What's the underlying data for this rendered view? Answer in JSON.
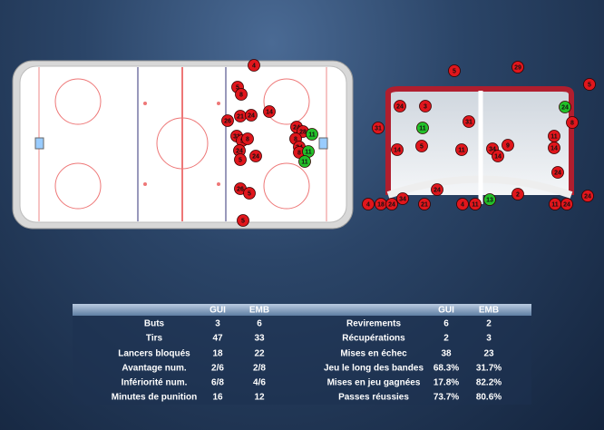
{
  "rink_shots": [
    {
      "label": "4",
      "color": "red"
    },
    {
      "label": "5",
      "color": "red"
    },
    {
      "label": "8",
      "color": "red"
    },
    {
      "label": "26",
      "color": "red"
    },
    {
      "label": "21",
      "color": "red"
    },
    {
      "label": "24",
      "color": "red"
    },
    {
      "label": "14",
      "color": "red"
    },
    {
      "label": "31",
      "color": "red"
    },
    {
      "label": "5",
      "color": "red"
    },
    {
      "label": "8",
      "color": "red"
    },
    {
      "label": "24",
      "color": "red"
    },
    {
      "label": "24",
      "color": "red"
    },
    {
      "label": "5",
      "color": "red"
    },
    {
      "label": "24",
      "color": "red"
    },
    {
      "label": "28",
      "color": "red"
    },
    {
      "label": "11",
      "color": "green"
    },
    {
      "label": "8",
      "color": "red"
    },
    {
      "label": "24",
      "color": "red"
    },
    {
      "label": "8",
      "color": "red"
    },
    {
      "label": "11",
      "color": "green"
    },
    {
      "label": "11",
      "color": "green"
    },
    {
      "label": "26",
      "color": "red"
    },
    {
      "label": "5",
      "color": "red"
    },
    {
      "label": "5",
      "color": "red"
    }
  ],
  "net_shots": [
    {
      "label": "5",
      "color": "red"
    },
    {
      "label": "29",
      "color": "red"
    },
    {
      "label": "5",
      "color": "red"
    },
    {
      "label": "24",
      "color": "red"
    },
    {
      "label": "3",
      "color": "red"
    },
    {
      "label": "11",
      "color": "green"
    },
    {
      "label": "31",
      "color": "red"
    },
    {
      "label": "24",
      "color": "green"
    },
    {
      "label": "8",
      "color": "red"
    },
    {
      "label": "31",
      "color": "red"
    },
    {
      "label": "11",
      "color": "red"
    },
    {
      "label": "14",
      "color": "red"
    },
    {
      "label": "5",
      "color": "red"
    },
    {
      "label": "11",
      "color": "red"
    },
    {
      "label": "34",
      "color": "red"
    },
    {
      "label": "9",
      "color": "red"
    },
    {
      "label": "14",
      "color": "red"
    },
    {
      "label": "14",
      "color": "red"
    },
    {
      "label": "24",
      "color": "red"
    },
    {
      "label": "24",
      "color": "red"
    },
    {
      "label": "2",
      "color": "red"
    },
    {
      "label": "24",
      "color": "red"
    },
    {
      "label": "4",
      "color": "red"
    },
    {
      "label": "18",
      "color": "red"
    },
    {
      "label": "24",
      "color": "red"
    },
    {
      "label": "34",
      "color": "red"
    },
    {
      "label": "21",
      "color": "red"
    },
    {
      "label": "4",
      "color": "red"
    },
    {
      "label": "11",
      "color": "red"
    },
    {
      "label": "13",
      "color": "green"
    },
    {
      "label": "11",
      "color": "red"
    },
    {
      "label": "24",
      "color": "red"
    }
  ],
  "stats": {
    "headers": [
      "GUI",
      "EMB"
    ],
    "left": [
      [
        "Buts",
        "3",
        "6"
      ],
      [
        "Tirs",
        "47",
        "33"
      ],
      [
        "Lancers bloqués",
        "18",
        "22"
      ],
      [
        "Avantage num.",
        "2/6",
        "2/8"
      ],
      [
        "Infériorité num.",
        "6/8",
        "4/6"
      ],
      [
        "Minutes de punition",
        "16",
        "12"
      ]
    ],
    "right": [
      [
        "Revirements",
        "6",
        "2"
      ],
      [
        "Récupérations",
        "2",
        "3"
      ],
      [
        "Mises en échec",
        "38",
        "23"
      ],
      [
        "Jeu le long des bandes",
        "68.3%",
        "31.7%"
      ],
      [
        "Mises en jeu gagnées",
        "17.8%",
        "82.2%"
      ],
      [
        "Passes réussies",
        "73.7%",
        "80.6%"
      ]
    ]
  }
}
